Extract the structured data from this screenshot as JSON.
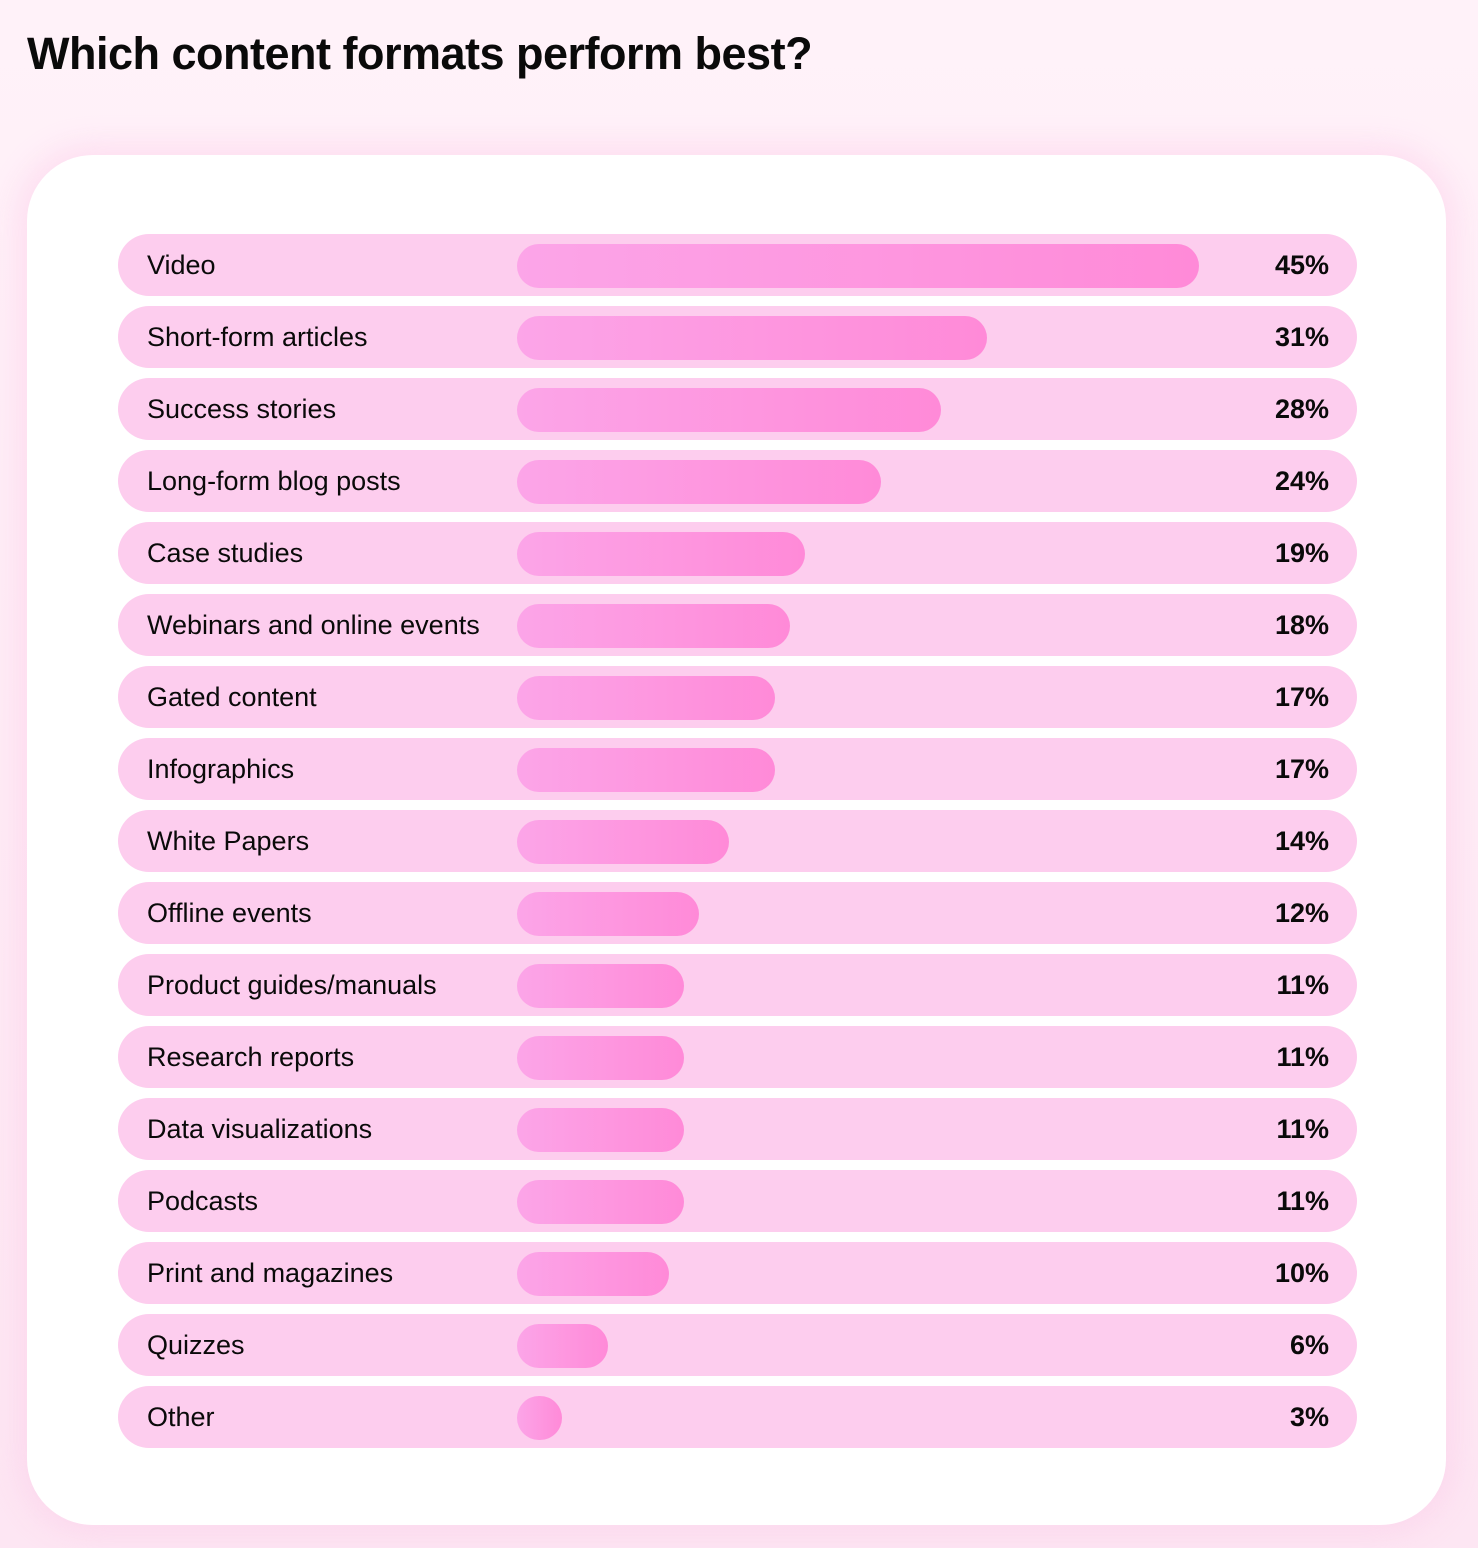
{
  "chart_data": {
    "type": "bar",
    "orientation": "horizontal",
    "title": "Which content formats perform best?",
    "categories": [
      "Video",
      "Short-form articles",
      "Success stories",
      "Long-form blog posts",
      "Case studies",
      "Webinars and online events",
      "Gated content",
      "Infographics",
      "White Papers",
      "Offline events",
      "Product guides/manuals",
      "Research reports",
      "Data visualizations",
      "Podcasts",
      "Print and magazines",
      "Quizzes",
      "Other"
    ],
    "values": [
      45,
      31,
      28,
      24,
      19,
      18,
      17,
      17,
      14,
      12,
      11,
      11,
      11,
      11,
      10,
      6,
      3
    ],
    "value_labels": [
      "45%",
      "31%",
      "28%",
      "24%",
      "19%",
      "18%",
      "17%",
      "17%",
      "14%",
      "12%",
      "11%",
      "11%",
      "11%",
      "11%",
      "10%",
      "6%",
      "3%"
    ],
    "unit": "%",
    "xlim": [
      0,
      45
    ],
    "grid": false,
    "colors": {
      "bar_start": "#fca5e8",
      "bar_end": "#ff8ad8",
      "track": "#fdcdee",
      "card": "#ffffff",
      "background": "#fff0f8"
    }
  }
}
